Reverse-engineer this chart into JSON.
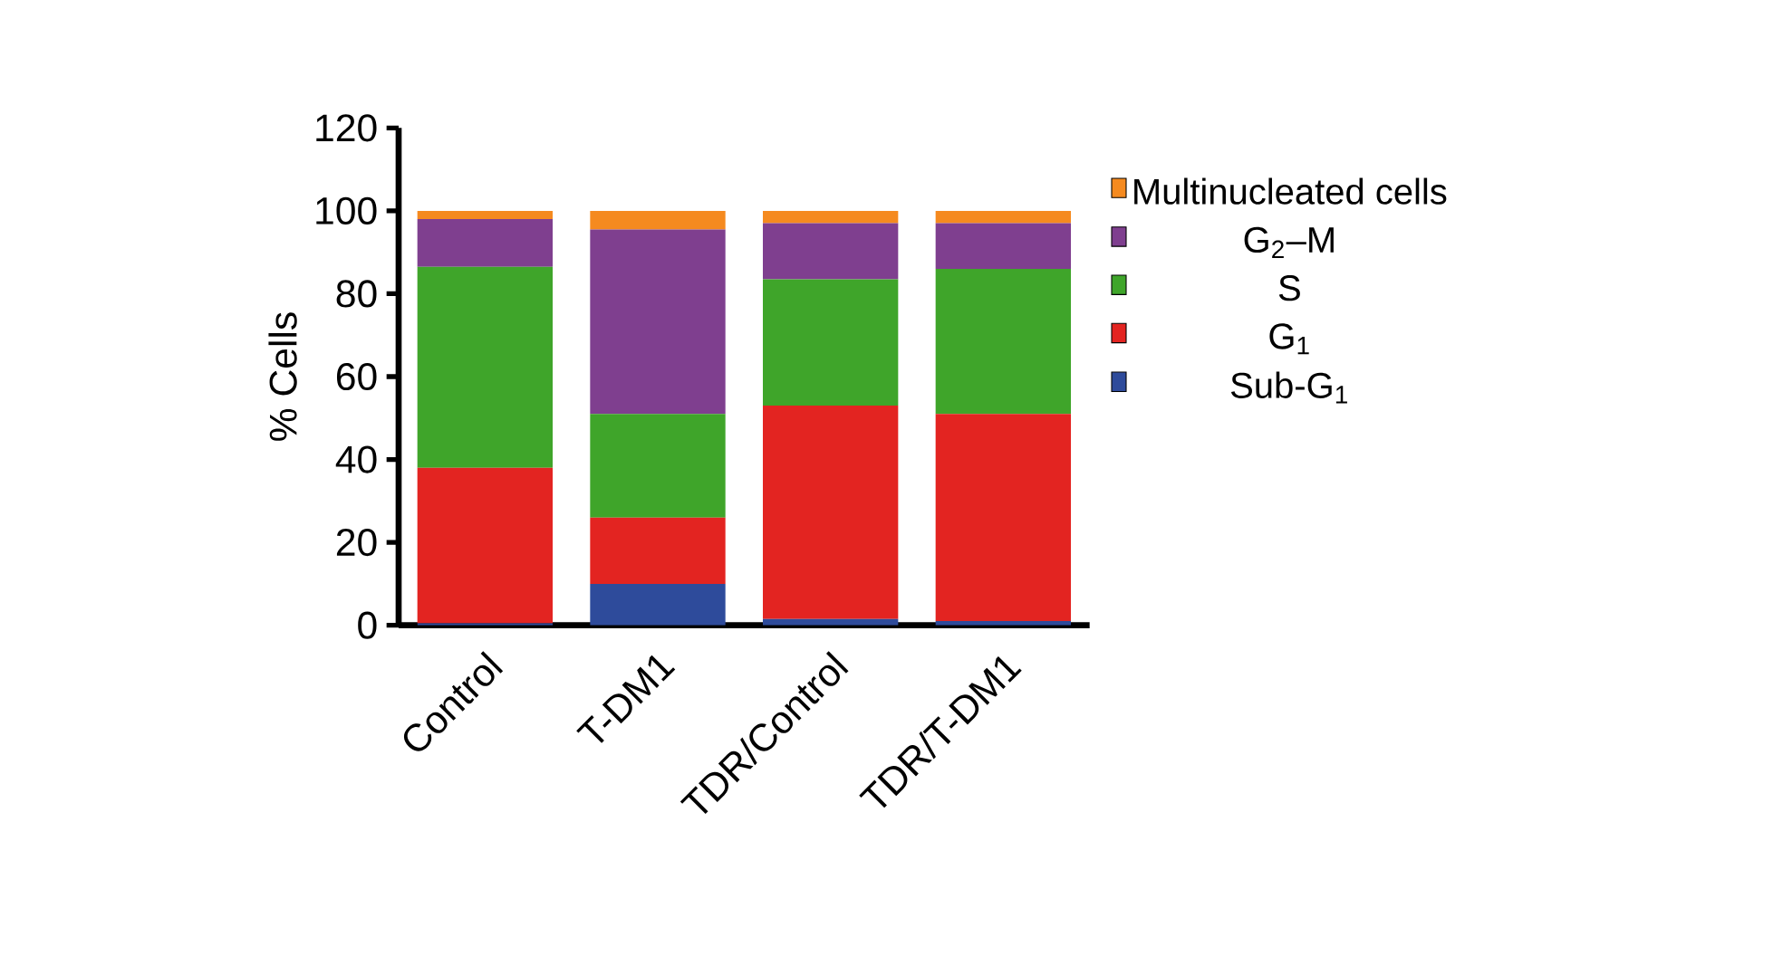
{
  "chart_data": {
    "type": "bar",
    "stacked": true,
    "ylabel": "% Cells",
    "categories": [
      "Control",
      "T-DM1",
      "TDR/Control",
      "TDR/T-DM1"
    ],
    "series": [
      {
        "name": "Sub-G$_{1}$",
        "color": "#2e4b9b",
        "values": [
          0.5,
          10,
          1.5,
          1
        ]
      },
      {
        "name": "G$_{1}$",
        "color": "#e32421",
        "values": [
          37.5,
          16,
          51.5,
          50
        ]
      },
      {
        "name": "S",
        "color": "#3fa52a",
        "values": [
          48.5,
          25,
          30.5,
          35
        ]
      },
      {
        "name": "G$_{2}$–M",
        "color": "#7f3f8f",
        "values": [
          11.5,
          44.5,
          13.5,
          11
        ]
      },
      {
        "name": "Multinucleated cells",
        "color": "#f58a1f",
        "values": [
          2,
          4.5,
          3,
          3
        ]
      }
    ],
    "ylim": [
      0,
      120
    ],
    "yticks": [
      0,
      20,
      40,
      60,
      80,
      100,
      120
    ],
    "grid": false,
    "legend": "right"
  }
}
